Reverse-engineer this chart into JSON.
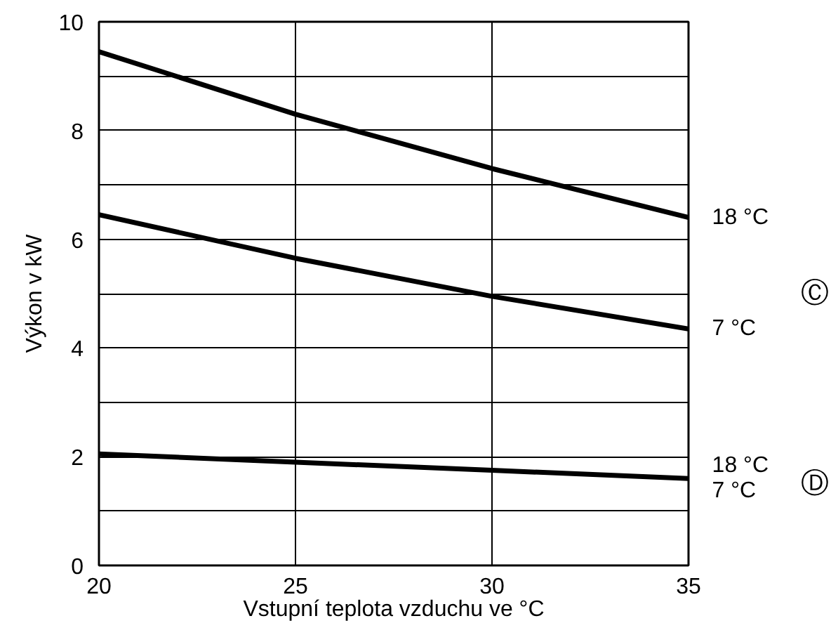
{
  "chart_data": {
    "type": "line",
    "xlabel": "Vstupní teplota vzduchu ve °C",
    "ylabel": "Výkon v kW",
    "x": [
      20,
      25,
      30,
      35
    ],
    "series": [
      {
        "name": "18 °C",
        "color": "#000000",
        "values": [
          9.45,
          8.3,
          7.3,
          6.4
        ]
      },
      {
        "name": "7 °C",
        "color": "#000000",
        "values": [
          6.45,
          5.65,
          4.95,
          4.35
        ]
      },
      {
        "color": "#000000",
        "values": [
          2.05,
          1.9,
          1.75,
          1.6
        ]
      }
    ],
    "annotations": [
      {
        "text": "18 °C",
        "x": 35,
        "y": 1.6
      },
      {
        "text": "7 °C",
        "x": 35,
        "y": 1.6
      },
      "Ⓒ",
      "Ⓓ"
    ],
    "xlim": [
      20,
      35
    ],
    "xticks": [
      20,
      25,
      30,
      35
    ],
    "ylim": [
      0,
      10
    ],
    "yticks": [
      0,
      {
        "value": 1,
        "label": null
      },
      2,
      {
        "value": 3,
        "label": null
      },
      4,
      {
        "value": 5,
        "label": null
      },
      6,
      {
        "value": 7,
        "label": null
      },
      8,
      {
        "value": 9,
        "label": null
      },
      10
    ],
    "grid": true,
    "legend": false,
    "marker": "none",
    "line_style": "solid"
  }
}
